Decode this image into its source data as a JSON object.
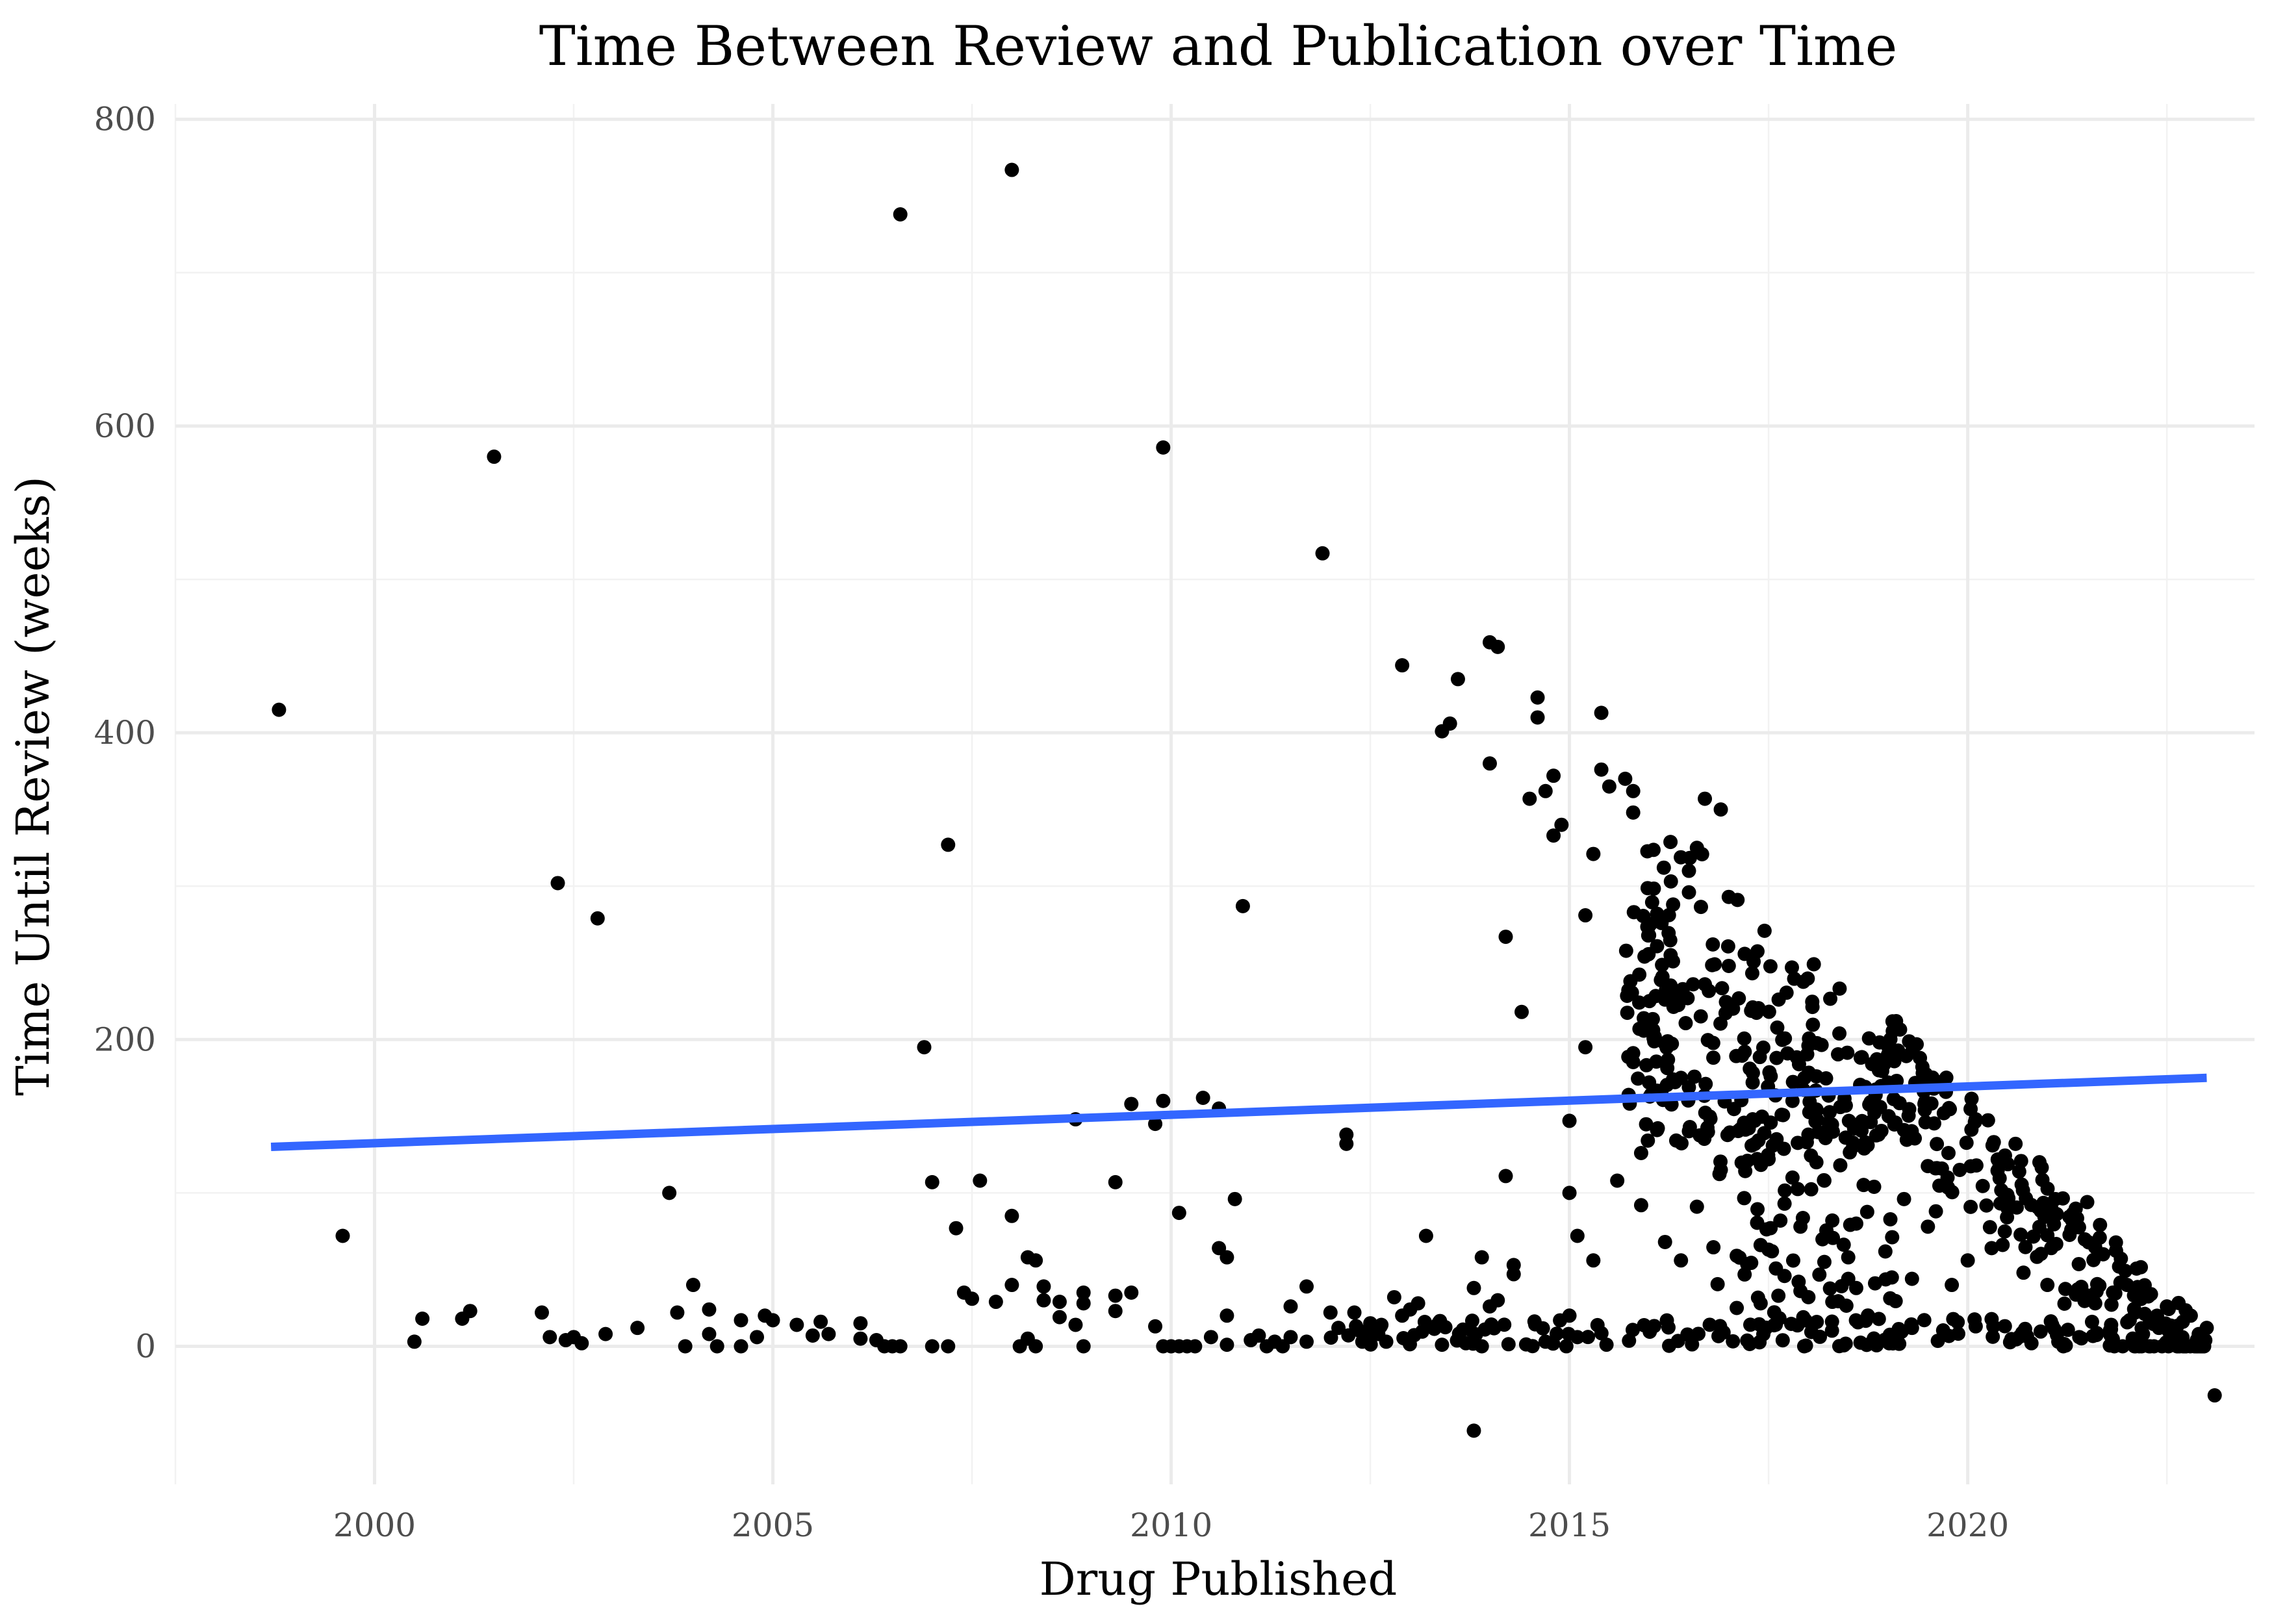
{
  "chart_data": {
    "type": "scatter",
    "title": "Time Between Review and Publication over Time",
    "xlabel": "Drug Published",
    "ylabel": "Time Until Review (weeks)",
    "xlim": [
      1997.5,
      2023.6
    ],
    "ylim": [
      -90,
      810
    ],
    "x_ticks": [
      2000,
      2005,
      2010,
      2015,
      2020
    ],
    "y_ticks": [
      0,
      200,
      400,
      600,
      800
    ],
    "grid": true,
    "legend": "none",
    "point_color": "#000000",
    "trend_color": "#3366ff",
    "trend_line": {
      "x": [
        1998.7,
        2023.0
      ],
      "y": [
        130,
        175
      ]
    },
    "points": [
      [
        1998.8,
        415
      ],
      [
        1999.6,
        72
      ],
      [
        2000.5,
        3
      ],
      [
        2000.6,
        18
      ],
      [
        2001.1,
        18
      ],
      [
        2001.2,
        23
      ],
      [
        2001.5,
        580
      ],
      [
        2002.1,
        22
      ],
      [
        2002.2,
        6
      ],
      [
        2002.3,
        302
      ],
      [
        2002.4,
        4
      ],
      [
        2002.5,
        6
      ],
      [
        2002.6,
        2
      ],
      [
        2002.8,
        279
      ],
      [
        2002.9,
        8
      ],
      [
        2003.3,
        12
      ],
      [
        2003.7,
        100
      ],
      [
        2003.8,
        22
      ],
      [
        2003.9,
        0
      ],
      [
        2004.0,
        40
      ],
      [
        2004.2,
        24
      ],
      [
        2004.2,
        8
      ],
      [
        2004.3,
        0
      ],
      [
        2004.6,
        17
      ],
      [
        2004.6,
        0
      ],
      [
        2004.8,
        6
      ],
      [
        2004.9,
        20
      ],
      [
        2005.0,
        17
      ],
      [
        2005.3,
        14
      ],
      [
        2005.5,
        7
      ],
      [
        2005.6,
        16
      ],
      [
        2005.7,
        8
      ],
      [
        2006.1,
        15
      ],
      [
        2006.1,
        5
      ],
      [
        2006.3,
        4
      ],
      [
        2006.4,
        0
      ],
      [
        2006.5,
        0
      ],
      [
        2006.6,
        0
      ],
      [
        2006.6,
        738
      ],
      [
        2006.9,
        195
      ],
      [
        2007.0,
        0
      ],
      [
        2007.0,
        107
      ],
      [
        2007.2,
        0
      ],
      [
        2007.2,
        327
      ],
      [
        2007.3,
        77
      ],
      [
        2007.4,
        35
      ],
      [
        2007.5,
        31
      ],
      [
        2007.6,
        108
      ],
      [
        2007.8,
        29
      ],
      [
        2008.0,
        85
      ],
      [
        2008.0,
        767
      ],
      [
        2008.0,
        40
      ],
      [
        2008.1,
        0
      ],
      [
        2008.2,
        5
      ],
      [
        2008.2,
        58
      ],
      [
        2008.3,
        0
      ],
      [
        2008.3,
        56
      ],
      [
        2008.4,
        30
      ],
      [
        2008.4,
        39
      ],
      [
        2008.6,
        29
      ],
      [
        2008.6,
        19
      ],
      [
        2008.8,
        148
      ],
      [
        2008.8,
        14
      ],
      [
        2008.9,
        28
      ],
      [
        2008.9,
        0
      ],
      [
        2008.9,
        35
      ],
      [
        2009.3,
        23
      ],
      [
        2009.3,
        107
      ],
      [
        2009.3,
        33
      ],
      [
        2009.5,
        35
      ],
      [
        2009.5,
        158
      ],
      [
        2009.8,
        145
      ],
      [
        2009.8,
        13
      ],
      [
        2009.9,
        0
      ],
      [
        2009.9,
        586
      ],
      [
        2009.9,
        160
      ],
      [
        2010.0,
        0
      ],
      [
        2010.1,
        0
      ],
      [
        2010.1,
        87
      ],
      [
        2010.2,
        0
      ],
      [
        2010.3,
        0
      ],
      [
        2010.4,
        162
      ],
      [
        2010.5,
        6
      ],
      [
        2010.6,
        64
      ],
      [
        2010.6,
        155
      ],
      [
        2010.7,
        20
      ],
      [
        2010.7,
        58
      ],
      [
        2010.7,
        1
      ],
      [
        2010.8,
        96
      ],
      [
        2010.9,
        287
      ],
      [
        2011.0,
        4
      ],
      [
        2011.1,
        7
      ],
      [
        2011.2,
        0
      ],
      [
        2011.3,
        3
      ],
      [
        2011.4,
        0
      ],
      [
        2011.5,
        26
      ],
      [
        2011.5,
        6
      ],
      [
        2011.7,
        39
      ],
      [
        2011.7,
        3
      ],
      [
        2011.9,
        517
      ],
      [
        2012.0,
        22
      ],
      [
        2012.1,
        12
      ],
      [
        2012.2,
        132
      ],
      [
        2012.2,
        138
      ],
      [
        2012.3,
        22
      ],
      [
        2012.4,
        3
      ],
      [
        2012.5,
        15
      ],
      [
        2012.6,
        8
      ],
      [
        2012.7,
        3
      ],
      [
        2012.8,
        32
      ],
      [
        2012.9,
        20
      ],
      [
        2012.9,
        444
      ],
      [
        2013.0,
        24
      ],
      [
        2013.1,
        28
      ],
      [
        2013.2,
        72
      ],
      [
        2013.4,
        1
      ],
      [
        2013.4,
        401
      ],
      [
        2013.5,
        406
      ],
      [
        2013.6,
        4
      ],
      [
        2013.6,
        435
      ],
      [
        2013.7,
        2
      ],
      [
        2013.8,
        38
      ],
      [
        2013.8,
        -55
      ],
      [
        2013.9,
        58
      ],
      [
        2013.9,
        0
      ],
      [
        2014.0,
        26
      ],
      [
        2014.0,
        459
      ],
      [
        2014.0,
        380
      ],
      [
        2014.1,
        456
      ],
      [
        2014.1,
        30
      ],
      [
        2014.2,
        267
      ],
      [
        2014.2,
        111
      ],
      [
        2014.3,
        47
      ],
      [
        2014.3,
        53
      ],
      [
        2014.4,
        218
      ],
      [
        2014.5,
        357
      ],
      [
        2014.6,
        423
      ],
      [
        2014.6,
        410
      ],
      [
        2014.7,
        3
      ],
      [
        2014.7,
        362
      ],
      [
        2014.8,
        372
      ],
      [
        2014.8,
        333
      ],
      [
        2014.9,
        340
      ],
      [
        2015.0,
        100
      ],
      [
        2015.0,
        147
      ],
      [
        2015.0,
        20
      ],
      [
        2015.1,
        6
      ],
      [
        2015.1,
        72
      ],
      [
        2015.2,
        195
      ],
      [
        2015.2,
        281
      ],
      [
        2015.3,
        321
      ],
      [
        2015.3,
        56
      ],
      [
        2015.4,
        413
      ],
      [
        2015.4,
        376
      ],
      [
        2015.5,
        365
      ],
      [
        2015.6,
        108
      ],
      [
        2015.7,
        370
      ],
      [
        2015.8,
        362
      ],
      [
        2015.8,
        348
      ],
      [
        2015.9,
        92
      ],
      [
        2015.9,
        126
      ],
      [
        2016.0,
        172
      ],
      [
        2016.0,
        268
      ],
      [
        2016.1,
        141
      ],
      [
        2016.1,
        282
      ],
      [
        2016.2,
        68
      ],
      [
        2016.3,
        174
      ],
      [
        2016.3,
        251
      ],
      [
        2016.4,
        175
      ],
      [
        2016.4,
        56
      ],
      [
        2016.5,
        310
      ],
      [
        2016.5,
        296
      ],
      [
        2016.6,
        325
      ],
      [
        2016.6,
        91
      ],
      [
        2016.7,
        357
      ],
      [
        2016.7,
        236
      ],
      [
        2016.8,
        262
      ],
      [
        2016.9,
        115
      ],
      [
        2016.9,
        350
      ],
      [
        2017.0,
        293
      ],
      [
        2017.0,
        248
      ],
      [
        2017.1,
        25
      ],
      [
        2017.1,
        59
      ],
      [
        2017.2,
        192
      ],
      [
        2017.3,
        172
      ],
      [
        2017.3,
        148
      ],
      [
        2017.4,
        66
      ],
      [
        2017.4,
        28
      ],
      [
        2017.5,
        122
      ],
      [
        2017.5,
        63
      ],
      [
        2017.6,
        188
      ],
      [
        2017.6,
        135
      ],
      [
        2017.7,
        93
      ],
      [
        2017.8,
        160
      ],
      [
        2017.8,
        110
      ],
      [
        2017.9,
        36
      ],
      [
        2017.9,
        78
      ],
      [
        2018.0,
        196
      ],
      [
        2018.0,
        138
      ],
      [
        2018.1,
        176
      ],
      [
        2018.1,
        120
      ],
      [
        2018.2,
        108
      ],
      [
        2018.2,
        55
      ],
      [
        2018.3,
        82
      ],
      [
        2018.3,
        29
      ],
      [
        2018.4,
        156
      ],
      [
        2018.4,
        118
      ],
      [
        2018.5,
        58
      ],
      [
        2018.5,
        44
      ],
      [
        2018.6,
        38
      ],
      [
        2018.6,
        80
      ],
      [
        2018.7,
        129
      ],
      [
        2018.8,
        184
      ],
      [
        2018.9,
        156
      ],
      [
        2019.0,
        172
      ],
      [
        2019.1,
        212
      ],
      [
        2019.2,
        141
      ],
      [
        2019.2,
        96
      ],
      [
        2019.3,
        44
      ],
      [
        2019.3,
        12
      ],
      [
        2019.4,
        188
      ],
      [
        2019.5,
        78
      ],
      [
        2019.6,
        88
      ],
      [
        2019.7,
        152
      ],
      [
        2019.8,
        40
      ],
      [
        2019.9,
        115
      ],
      [
        2020.0,
        56
      ],
      [
        2020.1,
        148
      ],
      [
        2020.1,
        13
      ],
      [
        2020.3,
        64
      ],
      [
        2020.4,
        118
      ],
      [
        2020.5,
        90
      ],
      [
        2020.6,
        132
      ],
      [
        2020.7,
        48
      ],
      [
        2020.8,
        2
      ],
      [
        2020.9,
        120
      ],
      [
        2021.0,
        40
      ],
      [
        2021.1,
        96
      ],
      [
        2021.2,
        0
      ],
      [
        2021.3,
        76
      ],
      [
        2021.4,
        6
      ],
      [
        2021.5,
        94
      ],
      [
        2021.6,
        28
      ],
      [
        2021.7,
        60
      ],
      [
        2021.8,
        14
      ],
      [
        2021.9,
        52
      ],
      [
        2022.0,
        40
      ],
      [
        2022.1,
        22
      ],
      [
        2022.2,
        8
      ],
      [
        2022.3,
        34
      ],
      [
        2022.4,
        12
      ],
      [
        2022.5,
        26
      ],
      [
        2022.6,
        6
      ],
      [
        2022.7,
        16
      ],
      [
        2022.8,
        20
      ],
      [
        2022.9,
        8
      ],
      [
        2023.0,
        12
      ],
      [
        2023.1,
        -32
      ]
    ],
    "clusters": [
      {
        "note": "dense band 2015.7-2019",
        "x0": 2015.7,
        "x1": 2019.1,
        "y_top": 360,
        "n": 320
      },
      {
        "note": "diagonal band 2019-2023",
        "x0": 2019.0,
        "x1": 2023.0,
        "n": 200
      },
      {
        "note": "near-zero band",
        "x0": 2012.0,
        "x1": 2023.0,
        "n": 140
      }
    ]
  }
}
